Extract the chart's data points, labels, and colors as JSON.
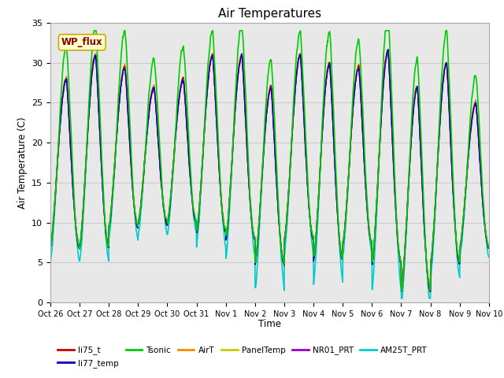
{
  "title": "Air Temperatures",
  "xlabel": "Time",
  "ylabel": "Air Temperature (C)",
  "ylim": [
    0,
    35
  ],
  "series": {
    "li75_t": {
      "color": "#cc0000",
      "lw": 1.0
    },
    "li77_temp": {
      "color": "#0000cc",
      "lw": 1.0
    },
    "Tsonic": {
      "color": "#00cc00",
      "lw": 1.2
    },
    "AirT": {
      "color": "#ff8800",
      "lw": 1.0
    },
    "PanelTemp": {
      "color": "#cccc00",
      "lw": 1.0
    },
    "NR01_PRT": {
      "color": "#9900cc",
      "lw": 1.0
    },
    "AM25T_PRT": {
      "color": "#00cccc",
      "lw": 1.2
    }
  },
  "annotation_text": "WP_flux",
  "annotation_color": "#880000",
  "annotation_bg": "#ffffcc",
  "annotation_border": "#ccaa00",
  "grid_color": "#cccccc",
  "bg_color": "#e8e8e8",
  "tick_labels": [
    "Oct 26",
    "Oct 27",
    "Oct 28",
    "Oct 29",
    "Oct 30",
    "Oct 31",
    "Nov 1",
    "Nov 2",
    "Nov 3",
    "Nov 4",
    "Nov 5",
    "Nov 6",
    "Nov 7",
    "Nov 8",
    "Nov 9",
    "Nov 10"
  ],
  "num_days": 15,
  "points_per_day": 144,
  "day_max_temps": [
    28.0,
    31.0,
    29.5,
    27.0,
    28.0,
    31.0,
    31.0,
    27.0,
    31.0,
    30.0,
    29.5,
    31.5,
    27.0,
    30.0,
    25.0
  ],
  "day_min_temps": [
    7.0,
    7.0,
    9.5,
    10.0,
    10.0,
    9.0,
    8.0,
    5.0,
    8.0,
    5.5,
    7.5,
    5.0,
    1.5,
    5.0,
    7.0
  ],
  "tsonic_extra_day": [
    4.0,
    3.5,
    4.5,
    3.5,
    4.0,
    3.0,
    4.0,
    3.5,
    3.0,
    4.0,
    3.5,
    4.5,
    3.5,
    4.0,
    3.5
  ],
  "am25t_extra_night": [
    2.0,
    2.0,
    1.5,
    1.5,
    1.5,
    2.0,
    2.5,
    3.5,
    2.0,
    3.0,
    1.5,
    3.5,
    2.0,
    2.0,
    1.5
  ]
}
